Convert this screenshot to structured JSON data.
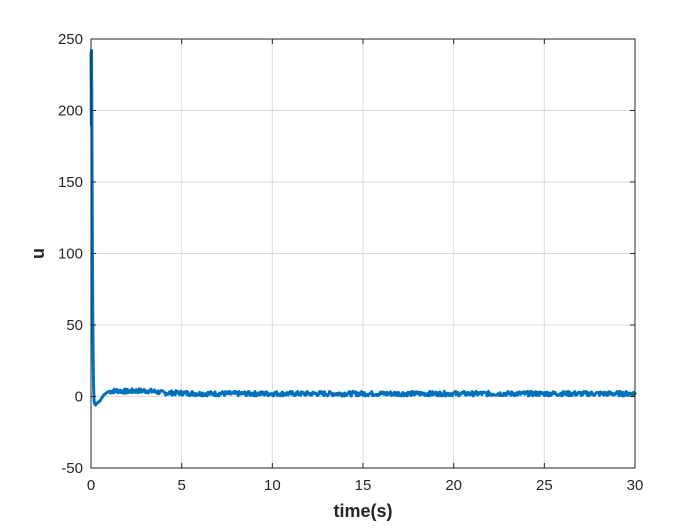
{
  "chart_data": {
    "type": "line",
    "title": "",
    "xlabel": "time(s)",
    "ylabel": "u",
    "xlim": [
      0,
      30
    ],
    "ylim": [
      -50,
      250
    ],
    "grid": true,
    "x_ticks": [
      0,
      5,
      10,
      15,
      20,
      25,
      30
    ],
    "x_tick_labels": [
      "0",
      "5",
      "10",
      "15",
      "20",
      "25",
      "30"
    ],
    "y_ticks": [
      -50,
      0,
      50,
      100,
      150,
      200,
      250
    ],
    "y_tick_labels": [
      "-50",
      "0",
      "50",
      "100",
      "150",
      "200",
      "250"
    ],
    "series": [
      {
        "color": "#0072BD",
        "x": [
          0,
          0.02,
          0.03,
          0.05,
          0.06,
          0.08,
          0.1,
          0.12,
          0.14,
          0.17,
          0.2,
          0.25,
          0.3,
          0.4,
          0.5,
          0.6,
          0.7,
          0.8,
          0.9,
          1.0,
          1.2,
          1.5,
          2.0,
          2.5,
          3.0,
          3.5,
          4.0,
          5.0,
          6.0,
          7.0,
          8.0,
          9.0,
          10.0,
          11.0,
          12.0,
          13.0,
          14.0,
          15.0,
          16.0,
          17.0,
          18.0,
          19.0,
          20.0,
          21.0,
          22.0,
          23.0,
          24.0,
          25.0,
          26.0,
          27.0,
          28.0,
          29.0,
          30.0
        ],
        "y": [
          240,
          190,
          242,
          195,
          160,
          100,
          55,
          28,
          8,
          -3,
          -5,
          -6,
          -5,
          -4,
          -3,
          -1,
          1,
          2,
          3,
          3.5,
          3.8,
          4,
          3.5,
          4,
          4,
          3.5,
          2.5,
          2.5,
          2,
          2,
          2,
          2,
          2,
          2,
          2,
          2,
          2,
          2,
          2,
          2,
          2,
          2,
          2,
          2,
          2,
          2,
          2,
          2,
          2,
          2,
          2,
          2,
          2
        ]
      }
    ]
  }
}
